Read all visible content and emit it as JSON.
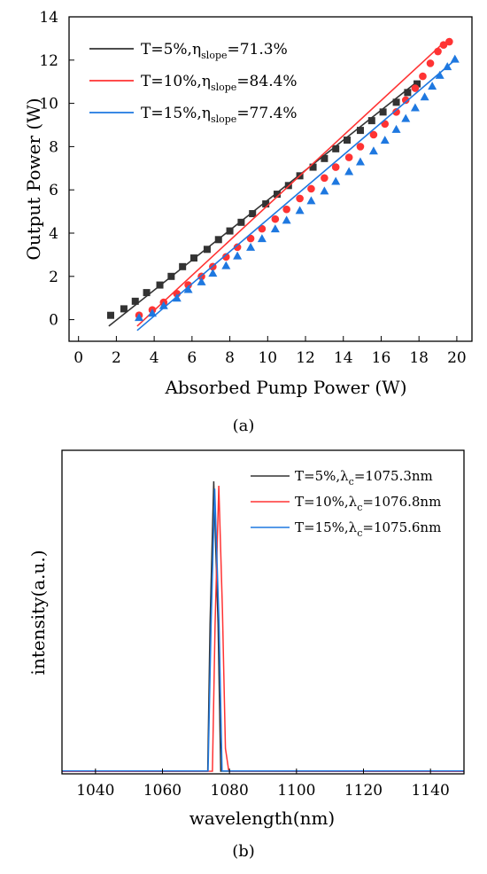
{
  "colors": {
    "black": "#333333",
    "red": "#ff3333",
    "blue": "#1e78e0"
  },
  "chart_data": [
    {
      "type": "scatter",
      "caption": "(a)",
      "xlabel": "Absorbed Pump Power (W)",
      "ylabel": "Output Power (W)",
      "xlim": [
        -0.5,
        20.8
      ],
      "ylim": [
        -1,
        14
      ],
      "xticks": [
        0,
        2,
        4,
        6,
        8,
        10,
        12,
        14,
        16,
        18,
        20
      ],
      "yticks": [
        0,
        2,
        4,
        6,
        8,
        10,
        12,
        14
      ],
      "legend_position": "top-left",
      "series": [
        {
          "key": "t5",
          "legend_main": "T=5%,η",
          "legend_sub": "slope",
          "legend_tail": "=71.3%",
          "color": "#333333",
          "marker": "square",
          "points": [
            [
              1.7,
              0.2
            ],
            [
              2.4,
              0.5
            ],
            [
              3.0,
              0.85
            ],
            [
              3.6,
              1.25
            ],
            [
              4.3,
              1.6
            ],
            [
              4.9,
              2.0
            ],
            [
              5.5,
              2.45
            ],
            [
              6.1,
              2.85
            ],
            [
              6.8,
              3.25
            ],
            [
              7.4,
              3.7
            ],
            [
              8.0,
              4.1
            ],
            [
              8.6,
              4.5
            ],
            [
              9.2,
              4.9
            ],
            [
              9.9,
              5.35
            ],
            [
              10.5,
              5.8
            ],
            [
              11.1,
              6.2
            ],
            [
              11.7,
              6.65
            ],
            [
              12.4,
              7.05
            ],
            [
              13.0,
              7.45
            ],
            [
              13.6,
              7.9
            ],
            [
              14.2,
              8.3
            ],
            [
              14.9,
              8.75
            ],
            [
              15.5,
              9.2
            ],
            [
              16.1,
              9.6
            ],
            [
              16.8,
              10.05
            ],
            [
              17.4,
              10.5
            ],
            [
              17.9,
              10.9
            ]
          ],
          "fit": [
            [
              1.6,
              -0.3
            ],
            [
              17.9,
              11.0
            ]
          ]
        },
        {
          "key": "t10",
          "legend_main": "T=10%,η",
          "legend_sub": "slope",
          "legend_tail": "=84.4%",
          "color": "#ff3333",
          "marker": "circle",
          "points": [
            [
              3.2,
              0.2
            ],
            [
              3.9,
              0.45
            ],
            [
              4.5,
              0.8
            ],
            [
              5.2,
              1.2
            ],
            [
              5.8,
              1.6
            ],
            [
              6.5,
              2.0
            ],
            [
              7.1,
              2.45
            ],
            [
              7.8,
              2.9
            ],
            [
              8.4,
              3.35
            ],
            [
              9.1,
              3.75
            ],
            [
              9.7,
              4.2
            ],
            [
              10.4,
              4.65
            ],
            [
              11.0,
              5.1
            ],
            [
              11.7,
              5.6
            ],
            [
              12.3,
              6.05
            ],
            [
              13.0,
              6.55
            ],
            [
              13.6,
              7.05
            ],
            [
              14.3,
              7.5
            ],
            [
              14.9,
              8.0
            ],
            [
              15.6,
              8.55
            ],
            [
              16.2,
              9.05
            ],
            [
              16.8,
              9.6
            ],
            [
              17.3,
              10.15
            ],
            [
              17.8,
              10.7
            ],
            [
              18.2,
              11.25
            ],
            [
              18.6,
              11.85
            ],
            [
              19.0,
              12.4
            ],
            [
              19.3,
              12.7
            ],
            [
              19.6,
              12.85
            ]
          ],
          "fit": [
            [
              3.1,
              -0.3
            ],
            [
              19.3,
              12.8
            ]
          ]
        },
        {
          "key": "t15",
          "legend_main": "T=15%,η",
          "legend_sub": "slope",
          "legend_tail": "=77.4%",
          "color": "#1e78e0",
          "marker": "triangle",
          "points": [
            [
              3.2,
              0.1
            ],
            [
              3.9,
              0.3
            ],
            [
              4.5,
              0.65
            ],
            [
              5.2,
              1.0
            ],
            [
              5.8,
              1.4
            ],
            [
              6.5,
              1.75
            ],
            [
              7.1,
              2.15
            ],
            [
              7.8,
              2.5
            ],
            [
              8.4,
              2.95
            ],
            [
              9.1,
              3.35
            ],
            [
              9.7,
              3.75
            ],
            [
              10.4,
              4.2
            ],
            [
              11.0,
              4.6
            ],
            [
              11.7,
              5.05
            ],
            [
              12.3,
              5.5
            ],
            [
              13.0,
              5.95
            ],
            [
              13.6,
              6.4
            ],
            [
              14.3,
              6.85
            ],
            [
              14.9,
              7.3
            ],
            [
              15.6,
              7.8
            ],
            [
              16.2,
              8.3
            ],
            [
              16.8,
              8.8
            ],
            [
              17.3,
              9.3
            ],
            [
              17.8,
              9.8
            ],
            [
              18.3,
              10.3
            ],
            [
              18.7,
              10.8
            ],
            [
              19.1,
              11.3
            ],
            [
              19.5,
              11.7
            ],
            [
              19.9,
              12.05
            ]
          ],
          "fit": [
            [
              3.1,
              -0.5
            ],
            [
              19.9,
              12.0
            ]
          ]
        }
      ]
    },
    {
      "type": "line",
      "caption": "(b)",
      "xlabel": "wavelength(nm)",
      "ylabel": "intensity(a.u.)",
      "xlim": [
        1030,
        1150
      ],
      "ylim": [
        0,
        1
      ],
      "xticks": [
        1040,
        1060,
        1080,
        1100,
        1120,
        1140
      ],
      "legend_position": "top-right",
      "series": [
        {
          "key": "b5",
          "legend_main": "T=5%,λ",
          "legend_sub": "c",
          "legend_tail": "=1075.3nm",
          "color": "#333333",
          "x": [
            1030,
            1073.5,
            1074.2,
            1075.3,
            1076.6,
            1077.4,
            1150
          ],
          "values": [
            0.002,
            0.003,
            0.5,
            0.985,
            0.5,
            0.003,
            0.002
          ]
        },
        {
          "key": "b10",
          "legend_main": "T=10%,λ",
          "legend_sub": "c",
          "legend_tail": "=1076.8nm",
          "color": "#ff3333",
          "x": [
            1030,
            1074.9,
            1075.7,
            1076.8,
            1077.9,
            1078.8,
            1079.8,
            1150
          ],
          "values": [
            0.002,
            0.003,
            0.5,
            0.97,
            0.55,
            0.08,
            0.003,
            0.002
          ]
        },
        {
          "key": "b15",
          "legend_main": "T=15%,λ",
          "legend_sub": "c",
          "legend_tail": "=1075.6nm",
          "color": "#1e78e0",
          "x": [
            1030,
            1073.6,
            1074.5,
            1075.6,
            1076.9,
            1077.8,
            1150
          ],
          "values": [
            0.004,
            0.004,
            0.5,
            0.96,
            0.5,
            0.004,
            0.004
          ]
        }
      ]
    }
  ]
}
